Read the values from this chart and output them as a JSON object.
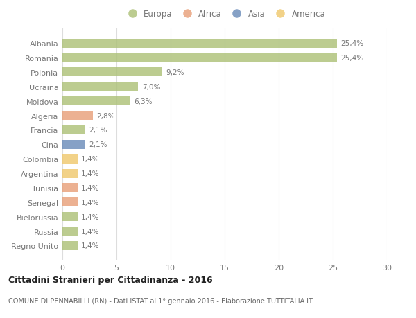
{
  "countries": [
    "Albania",
    "Romania",
    "Polonia",
    "Ucraina",
    "Moldova",
    "Algeria",
    "Francia",
    "Cina",
    "Colombia",
    "Argentina",
    "Tunisia",
    "Senegal",
    "Bielorussia",
    "Russia",
    "Regno Unito"
  ],
  "values": [
    25.4,
    25.4,
    9.2,
    7.0,
    6.3,
    2.8,
    2.1,
    2.1,
    1.4,
    1.4,
    1.4,
    1.4,
    1.4,
    1.4,
    1.4
  ],
  "labels": [
    "25,4%",
    "25,4%",
    "9,2%",
    "7,0%",
    "6,3%",
    "2,8%",
    "2,1%",
    "2,1%",
    "1,4%",
    "1,4%",
    "1,4%",
    "1,4%",
    "1,4%",
    "1,4%",
    "1,4%"
  ],
  "continents": [
    "Europa",
    "Europa",
    "Europa",
    "Europa",
    "Europa",
    "Africa",
    "Europa",
    "Asia",
    "America",
    "America",
    "Africa",
    "Africa",
    "Europa",
    "Europa",
    "Europa"
  ],
  "colors": {
    "Europa": "#adc178",
    "Africa": "#e8a07a",
    "Asia": "#6b8cba",
    "America": "#f0c96e"
  },
  "legend_order": [
    "Europa",
    "Africa",
    "Asia",
    "America"
  ],
  "xlim": [
    0,
    30
  ],
  "xticks": [
    0,
    5,
    10,
    15,
    20,
    25,
    30
  ],
  "title": "Cittadini Stranieri per Cittadinanza - 2016",
  "subtitle": "COMUNE DI PENNABILLI (RN) - Dati ISTAT al 1° gennaio 2016 - Elaborazione TUTTITALIA.IT",
  "background_color": "#ffffff",
  "bar_alpha": 0.82,
  "grid_color": "#dddddd",
  "label_color": "#777777",
  "title_color": "#222222",
  "subtitle_color": "#666666"
}
